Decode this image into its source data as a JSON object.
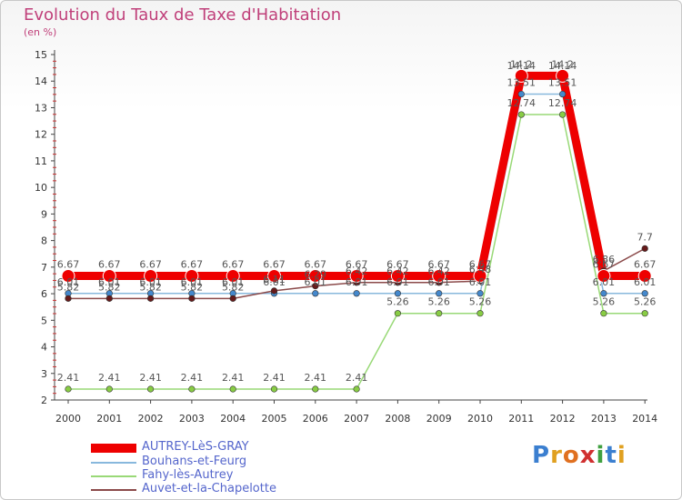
{
  "chart_data": {
    "type": "line",
    "title": "Evolution du Taux de Taxe d'Habitation",
    "unit_label": "(en %)",
    "xlabel": "",
    "ylabel": "",
    "ylim": [
      2,
      15
    ],
    "y_ticks": [
      2,
      3,
      4,
      5,
      6,
      7,
      8,
      9,
      10,
      11,
      12,
      13,
      14,
      15
    ],
    "categories": [
      "2000",
      "2001",
      "2002",
      "2003",
      "2004",
      "2005",
      "2006",
      "2007",
      "2008",
      "2009",
      "2010",
      "2011",
      "2012",
      "2013",
      "2014"
    ],
    "grid": false,
    "legend_position": "bottom-left",
    "series": [
      {
        "name": "Fahy-lès-Autrey",
        "color": "#99d977",
        "marker": "#88cc44",
        "width": 1.5,
        "values": [
          2.41,
          2.41,
          2.41,
          2.41,
          2.41,
          2.41,
          2.41,
          2.41,
          5.26,
          5.26,
          5.26,
          12.74,
          12.74,
          5.26,
          5.26
        ],
        "labels": [
          "2.41",
          "2.41",
          "2.41",
          "2.41",
          "2.41",
          "2.41",
          "2.41",
          "2.41",
          "5.26",
          "5.26",
          "5.26",
          "12.74",
          "12.74",
          "5.26",
          "5.26"
        ]
      },
      {
        "name": "Bouhans-et-Feurg",
        "color": "#88b8dd",
        "marker": "#4488cc",
        "width": 1.5,
        "values": [
          6.01,
          6.01,
          6.01,
          6.01,
          6.01,
          6.01,
          6.01,
          6.01,
          6.01,
          6.01,
          6.01,
          13.51,
          13.51,
          6.01,
          6.01
        ],
        "labels": [
          "6.01",
          "6.01",
          "6.01",
          "6.01",
          "6.01",
          "6.01",
          "6.01",
          "6.01",
          "6.01",
          "6.01",
          "6.01",
          "13.51",
          "13.51",
          "6.01",
          "6.01"
        ]
      },
      {
        "name": "Auvet-et-la-Chapelotte",
        "color": "#8b4a4a",
        "marker": "#661a1a",
        "width": 1.5,
        "values": [
          5.82,
          5.82,
          5.82,
          5.82,
          5.82,
          6.11,
          6.29,
          6.42,
          6.42,
          6.42,
          6.48,
          14.14,
          14.14,
          6.86,
          7.7
        ],
        "labels": [
          "5.82",
          "5.82",
          "5.82",
          "5.82",
          "5.82",
          "6.11",
          "6.29",
          "6.42",
          "6.42",
          "6.42",
          "6.48",
          "14.14",
          "14.14",
          "6.86",
          "7.7"
        ]
      },
      {
        "name": "AUTREY-LèS-GRAY",
        "color": "#ee0000",
        "marker": "#ee0000",
        "width": 9,
        "values": [
          6.67,
          6.67,
          6.67,
          6.67,
          6.67,
          6.67,
          6.67,
          6.67,
          6.67,
          6.67,
          6.67,
          14.2,
          14.2,
          6.67,
          6.67
        ],
        "labels": [
          "6.67",
          "6.67",
          "6.67",
          "6.67",
          "6.67",
          "6.67",
          "6.67",
          "6.67",
          "6.67",
          "6.67",
          "6.67",
          "14.2",
          "14.2",
          "6.67",
          "6.67"
        ]
      }
    ]
  },
  "legend": [
    {
      "label": "AUTREY-LèS-GRAY",
      "color": "#ee0000"
    },
    {
      "label": "Bouhans-et-Feurg",
      "color": "#88b8dd"
    },
    {
      "label": "Fahy-lès-Autrey",
      "color": "#99d977"
    },
    {
      "label": "Auvet-et-la-Chapelotte",
      "color": "#8b4a4a"
    }
  ],
  "brand": {
    "letters": [
      "P",
      "r",
      "o",
      "x",
      "i",
      "t",
      "i"
    ],
    "colors": [
      "#3b7fd0",
      "#e0a020",
      "#e07020",
      "#d03030",
      "#40a040",
      "#3b7fd0",
      "#e0a020"
    ]
  },
  "colors": {
    "title": "#c0407a",
    "axis": "#444444",
    "legend_text": "#5566cc"
  }
}
